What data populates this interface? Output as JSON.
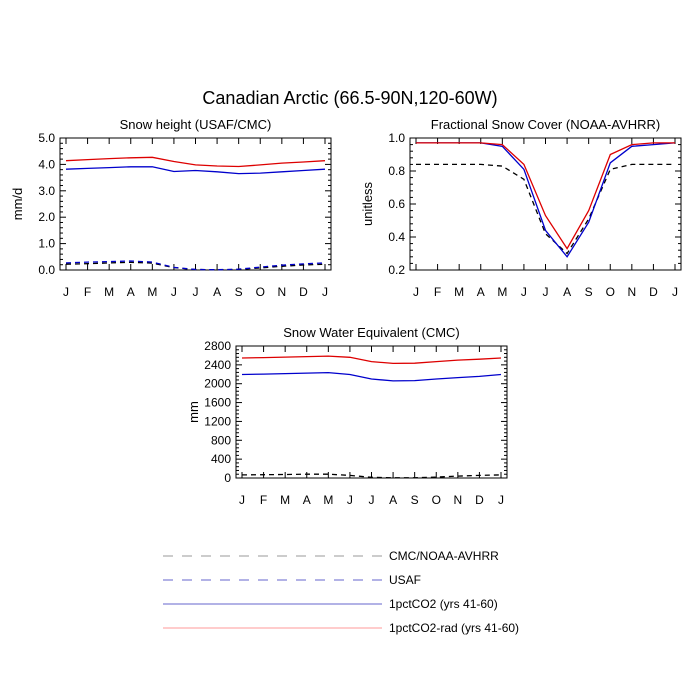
{
  "figure": {
    "title": "Canadian Arctic (66.5-90N,120-60W)"
  },
  "month_labels": [
    "J",
    "F",
    "M",
    "A",
    "M",
    "J",
    "J",
    "A",
    "S",
    "O",
    "N",
    "D",
    "J"
  ],
  "colors": {
    "obs_primary": "#000000",
    "obs_secondary": "#0000cc",
    "run_1pctco2": "#0000cc",
    "run_1pctco2_rad": "#dd0000",
    "legend_obs_primary": "#999999",
    "legend_obs_secondary": "#6666cc",
    "legend_run_1pctco2": "#6666cc",
    "legend_run_1pctco2_rad": "#ff9999"
  },
  "legend": [
    {
      "label": "CMC/NOAA-AVHRR",
      "style": "dashed",
      "color_key": "legend_obs_primary"
    },
    {
      "label": "USAF",
      "style": "dashed",
      "color_key": "legend_obs_secondary"
    },
    {
      "label": "1pctCO2 (yrs 41-60)",
      "style": "solid",
      "color_key": "legend_run_1pctco2"
    },
    {
      "label": "1pctCO2-rad (yrs 41-60)",
      "style": "solid",
      "color_key": "legend_run_1pctco2_rad"
    }
  ],
  "chart_data": [
    {
      "type": "line",
      "title": "Snow height (USAF/CMC)",
      "ylabel": "mm/d",
      "xlabel": "",
      "categories": [
        "J",
        "F",
        "M",
        "A",
        "M",
        "J",
        "J",
        "A",
        "S",
        "O",
        "N",
        "D",
        "J"
      ],
      "ylim": [
        0,
        5.0
      ],
      "yticks": [
        0,
        1.0,
        2.0,
        3.0,
        4.0,
        5.0
      ],
      "ytick_labels": [
        "0.0",
        "1.0",
        "2.0",
        "3.0",
        "4.0",
        "5.0"
      ],
      "series": [
        {
          "name": "CMC/NOAA-AVHRR",
          "style": "dashed",
          "color_key": "obs_primary",
          "values": [
            0.22,
            0.24,
            0.27,
            0.29,
            0.26,
            0.09,
            0.02,
            0.01,
            0.02,
            0.08,
            0.14,
            0.19,
            0.22
          ]
        },
        {
          "name": "USAF",
          "style": "dashed",
          "color_key": "obs_secondary",
          "values": [
            0.27,
            0.3,
            0.32,
            0.34,
            0.3,
            0.1,
            0.02,
            0.01,
            0.03,
            0.11,
            0.18,
            0.23,
            0.27
          ]
        },
        {
          "name": "1pctCO2 (yrs 41-60)",
          "style": "solid",
          "color_key": "run_1pctco2",
          "values": [
            3.82,
            3.85,
            3.88,
            3.91,
            3.91,
            3.73,
            3.77,
            3.72,
            3.65,
            3.67,
            3.72,
            3.77,
            3.82
          ]
        },
        {
          "name": "1pctCO2-rad (yrs 41-60)",
          "style": "solid",
          "color_key": "run_1pctco2_rad",
          "values": [
            4.14,
            4.18,
            4.22,
            4.25,
            4.27,
            4.11,
            3.98,
            3.94,
            3.92,
            3.98,
            4.05,
            4.09,
            4.14
          ]
        }
      ]
    },
    {
      "type": "line",
      "title": "Fractional Snow Cover (NOAA-AVHRR)",
      "ylabel": "unitless",
      "xlabel": "",
      "categories": [
        "J",
        "F",
        "M",
        "A",
        "M",
        "J",
        "J",
        "A",
        "S",
        "O",
        "N",
        "D",
        "J"
      ],
      "ylim": [
        0.2,
        1.0
      ],
      "yticks": [
        0.2,
        0.4,
        0.6,
        0.8,
        1.0
      ],
      "ytick_labels": [
        "0.2",
        "0.4",
        "0.6",
        "0.8",
        "1.0"
      ],
      "series": [
        {
          "name": "CMC/NOAA-AVHRR",
          "style": "dashed",
          "color_key": "obs_primary",
          "values": [
            0.84,
            0.84,
            0.84,
            0.84,
            0.83,
            0.75,
            0.42,
            0.3,
            0.51,
            0.81,
            0.84,
            0.84,
            0.84
          ]
        },
        {
          "name": "1pctCO2 (yrs 41-60)",
          "style": "solid",
          "color_key": "run_1pctco2",
          "values": [
            0.97,
            0.97,
            0.97,
            0.97,
            0.95,
            0.81,
            0.44,
            0.28,
            0.49,
            0.85,
            0.95,
            0.96,
            0.97
          ]
        },
        {
          "name": "1pctCO2-rad (yrs 41-60)",
          "style": "solid",
          "color_key": "run_1pctco2_rad",
          "values": [
            0.97,
            0.97,
            0.97,
            0.97,
            0.96,
            0.84,
            0.53,
            0.33,
            0.56,
            0.9,
            0.96,
            0.97,
            0.97
          ]
        }
      ]
    },
    {
      "type": "line",
      "title": "Snow Water Equivalent (CMC)",
      "ylabel": "mm",
      "xlabel": "",
      "categories": [
        "J",
        "F",
        "M",
        "A",
        "M",
        "J",
        "J",
        "A",
        "S",
        "O",
        "N",
        "D",
        "J"
      ],
      "ylim": [
        0,
        2800
      ],
      "yticks": [
        0,
        400,
        800,
        1200,
        1600,
        2000,
        2400,
        2800
      ],
      "ytick_labels": [
        "0",
        "400",
        "800",
        "1200",
        "1600",
        "2000",
        "2400",
        "2800"
      ],
      "series": [
        {
          "name": "CMC/NOAA-AVHRR",
          "style": "dashed",
          "color_key": "obs_primary",
          "values": [
            65,
            70,
            75,
            80,
            80,
            55,
            15,
            5,
            5,
            20,
            40,
            55,
            65
          ]
        },
        {
          "name": "1pctCO2 (yrs 41-60)",
          "style": "solid",
          "color_key": "run_1pctco2",
          "values": [
            2195,
            2205,
            2215,
            2225,
            2235,
            2195,
            2100,
            2060,
            2065,
            2100,
            2130,
            2155,
            2195
          ]
        },
        {
          "name": "1pctCO2-rad (yrs 41-60)",
          "style": "solid",
          "color_key": "run_1pctco2_rad",
          "values": [
            2545,
            2555,
            2565,
            2575,
            2585,
            2560,
            2470,
            2430,
            2435,
            2470,
            2500,
            2520,
            2545
          ]
        }
      ]
    }
  ]
}
